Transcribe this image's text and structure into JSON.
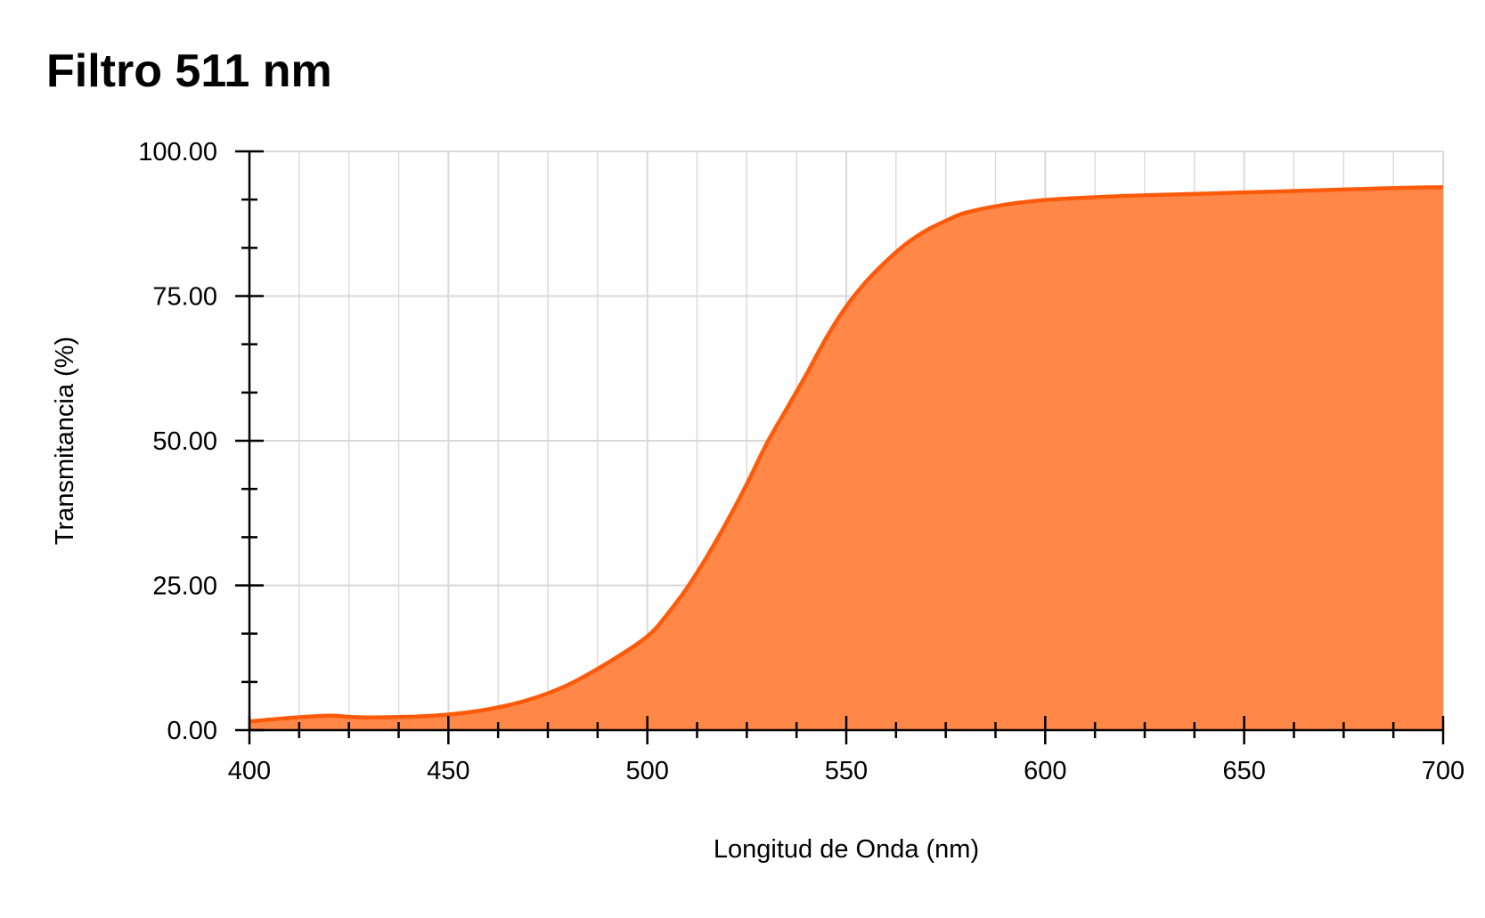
{
  "colors": {
    "series_line": "#ff5a0a",
    "series_fill": "#ff8849",
    "grid": "#d9d9d9",
    "axis": "#000000",
    "background": "#ffffff"
  },
  "chart_data": {
    "type": "area",
    "title": "Filtro 511 nm",
    "xlabel": "Longitud de Onda (nm)",
    "ylabel": "Transmitancia (%)",
    "xlim": [
      400,
      700
    ],
    "ylim": [
      0,
      100
    ],
    "x_ticks": [
      400,
      450,
      500,
      550,
      600,
      650,
      700
    ],
    "x_tick_labels": [
      "400",
      "450",
      "500",
      "550",
      "600",
      "650",
      "700"
    ],
    "y_ticks": [
      0,
      25,
      50,
      75,
      100
    ],
    "y_tick_labels": [
      "0.00",
      "25.00",
      "50.00",
      "75.00",
      "100.00"
    ],
    "grid": true,
    "legend": "none",
    "series": [
      {
        "x": [
          400,
          410,
          420,
          425,
          430,
          440,
          450,
          460,
          470,
          480,
          490,
          500,
          505,
          510,
          515,
          520,
          525,
          530,
          535,
          540,
          545,
          550,
          555,
          560,
          565,
          570,
          575,
          580,
          590,
          600,
          610,
          620,
          630,
          640,
          650,
          660,
          670,
          680,
          690,
          700
        ],
        "values": [
          1.5,
          2.1,
          2.5,
          2.3,
          2.2,
          2.3,
          2.7,
          3.6,
          5.2,
          7.8,
          11.6,
          16.2,
          20.0,
          24.6,
          30.0,
          36.0,
          42.5,
          49.5,
          55.5,
          61.5,
          67.8,
          73.2,
          77.5,
          81.0,
          84.0,
          86.3,
          88.0,
          89.4,
          90.8,
          91.6,
          92.0,
          92.3,
          92.5,
          92.7,
          92.9,
          93.1,
          93.3,
          93.5,
          93.7,
          93.8
        ]
      }
    ]
  }
}
